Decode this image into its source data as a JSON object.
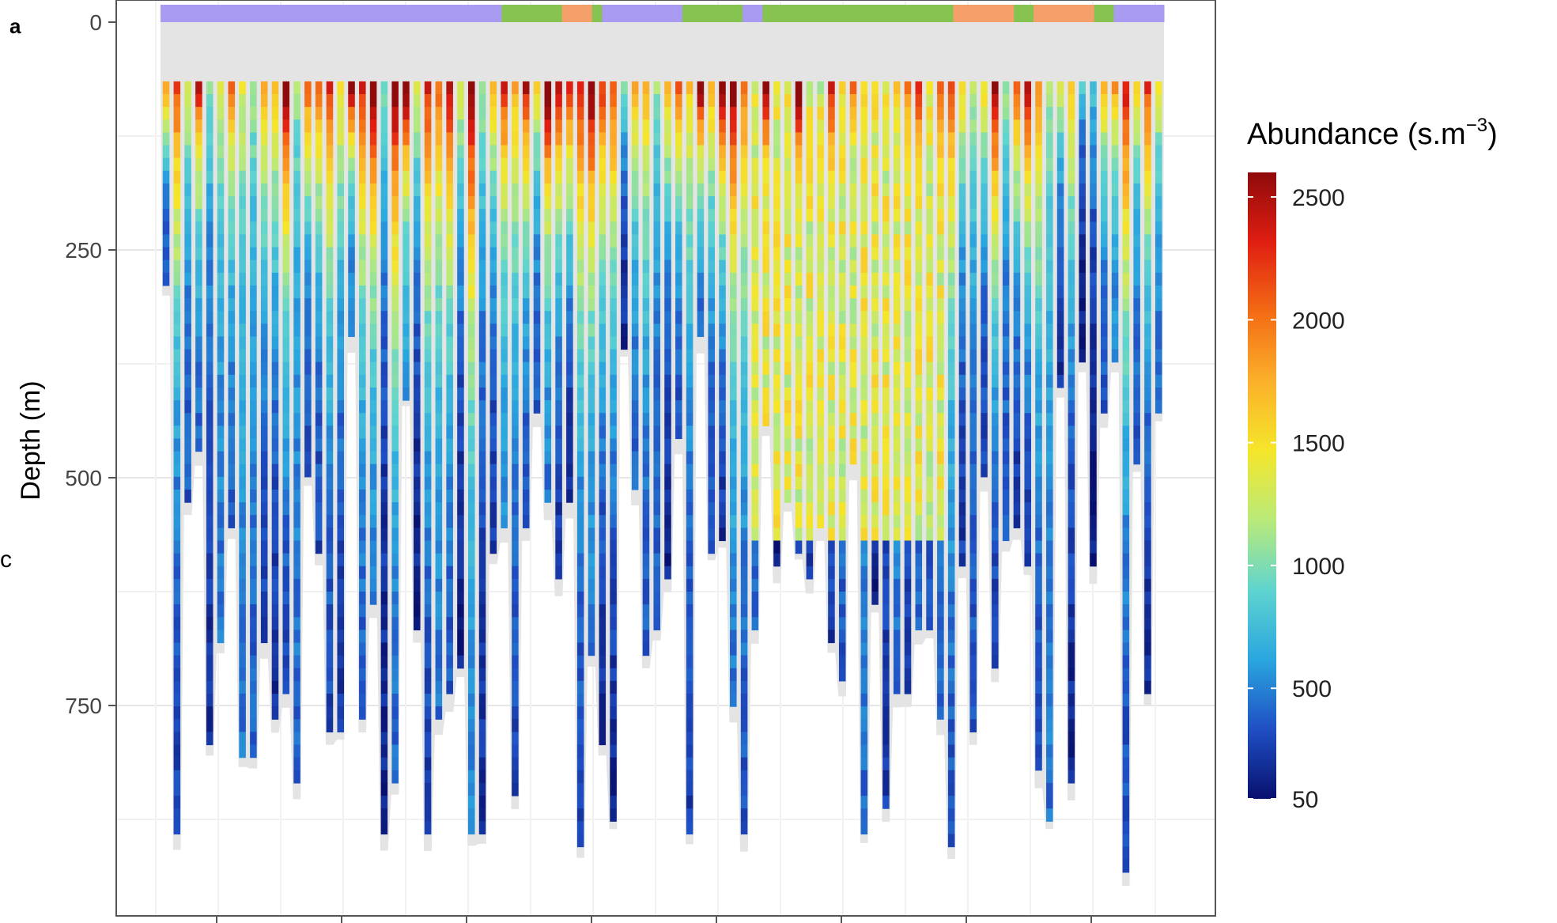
{
  "figure": {
    "panel_label": "a",
    "stray_label": "c"
  },
  "chart_data": {
    "type": "heatmap",
    "title": "",
    "xlabel": "",
    "ylabel": "Depth (m)",
    "ylim": [
      0,
      980
    ],
    "y_reversed": true,
    "y_ticks": [
      0,
      250,
      500,
      750
    ],
    "y_tick_labels": [
      "0",
      "250",
      "500",
      "750"
    ],
    "grid": true,
    "legend_position": "right",
    "colorbar": {
      "title": "Abundance (s.m",
      "title_superscript": "−3",
      "title_suffix": ")",
      "range": [
        50,
        2600
      ],
      "tick_values": [
        50,
        500,
        1000,
        1500,
        2000,
        2500
      ],
      "tick_labels": [
        "50",
        "500",
        "1000",
        "1500",
        "2000",
        "2500"
      ],
      "colors": [
        "#08106e",
        "#1f4fc4",
        "#2aa6df",
        "#5fd4cf",
        "#b9ea7a",
        "#f5e62a",
        "#fbb02a",
        "#f36b14",
        "#e01e12",
        "#8f0a0a"
      ]
    },
    "water_mask_color": "#e4e4e4",
    "blank_surface_depth": 65,
    "profiles": {
      "count": 92,
      "max_depth_range": [
        280,
        930
      ],
      "surface_intensity_range": [
        700,
        2600
      ],
      "deep_intensity_range": [
        50,
        700
      ]
    },
    "top_category_bar": {
      "categories": [
        {
          "name": "purple",
          "color": "#a99af2"
        },
        {
          "name": "green",
          "color": "#86c350"
        },
        {
          "name": "orange",
          "color": "#f59f6b"
        }
      ],
      "segments": [
        {
          "start": 0.0,
          "end": 0.34,
          "category": "purple"
        },
        {
          "start": 0.34,
          "end": 0.4,
          "category": "green"
        },
        {
          "start": 0.4,
          "end": 0.43,
          "category": "orange"
        },
        {
          "start": 0.43,
          "end": 0.44,
          "category": "green"
        },
        {
          "start": 0.44,
          "end": 0.52,
          "category": "purple"
        },
        {
          "start": 0.52,
          "end": 0.58,
          "category": "green"
        },
        {
          "start": 0.58,
          "end": 0.6,
          "category": "purple"
        },
        {
          "start": 0.6,
          "end": 0.63,
          "category": "green"
        },
        {
          "start": 0.63,
          "end": 0.95,
          "category": "green"
        },
        {
          "start": 0.95,
          "end": 1.0,
          "category": "purple"
        }
      ],
      "orange_segments": [
        {
          "start": 0.79,
          "end": 0.85,
          "category": "orange"
        },
        {
          "start": 0.87,
          "end": 0.93,
          "category": "orange"
        }
      ]
    }
  }
}
